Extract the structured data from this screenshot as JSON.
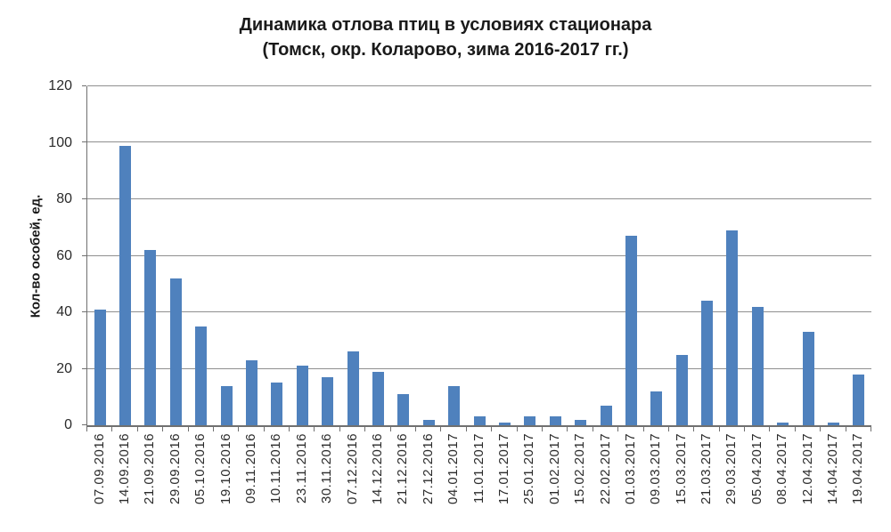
{
  "chart_data": {
    "type": "bar",
    "title": "Динамика отлова птиц в условиях стационара",
    "subtitle": "(Томск, окр. Коларово, зима 2016-2017 гг.)",
    "ylabel": "Кол-во особей, ед.",
    "xlabel": "",
    "ylim": [
      0,
      120
    ],
    "yticks": [
      0,
      20,
      40,
      60,
      80,
      100,
      120
    ],
    "grid": true,
    "legend": false,
    "bar_color": "#4F81BD",
    "gridline_color": "#8f8f8f",
    "axis_color": "#707070",
    "categories": [
      "07.09.2016",
      "14.09.2016",
      "21.09.2016",
      "29.09.2016",
      "05.10.2016",
      "19.10.2016",
      "09.11.2016",
      "10.11.2016",
      "23.11.2016",
      "30.11.2016",
      "07.12.2016",
      "14.12.2016",
      "21.12.2016",
      "27.12.2016",
      "04.01.2017",
      "11.01.2017",
      "17.01.2017",
      "25.01.2017",
      "01.02.2017",
      "15.02.2017",
      "22.02.2017",
      "01.03.2017",
      "09.03.2017",
      "15.03.2017",
      "21.03.2017",
      "29.03.2017",
      "05.04.2017",
      "08.04.2017",
      "12.04.2017",
      "14.04.2017",
      "19.04.2017"
    ],
    "values": [
      41,
      99,
      62,
      52,
      35,
      14,
      23,
      15,
      21,
      17,
      26,
      19,
      11,
      2,
      14,
      3,
      1,
      3,
      3,
      2,
      7,
      67,
      12,
      25,
      44,
      69,
      42,
      1,
      33,
      1,
      18
    ]
  }
}
